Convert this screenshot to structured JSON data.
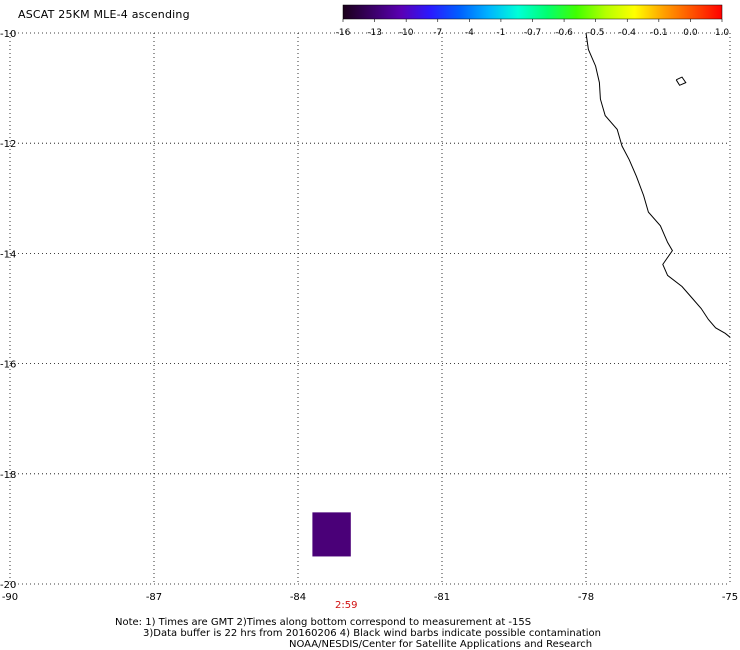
{
  "title": "ASCAT 25KM MLE-4 ascending",
  "colorbar": {
    "labels": [
      "-16",
      "-13",
      "-10",
      "-7",
      "-4",
      "-1",
      "-0.7",
      "-0.6",
      "-0.5",
      "-0.4",
      "-0.1",
      "0.0",
      "1.0"
    ],
    "gradient": [
      "#1a001a",
      "#3a0066",
      "#5a00b4",
      "#2a1aff",
      "#0060ff",
      "#00b4ff",
      "#00ffd8",
      "#00ff70",
      "#40ff00",
      "#b4ff00",
      "#ffff00",
      "#ffa000",
      "#ff5000",
      "#ff0000"
    ]
  },
  "map": {
    "lon_range": [
      -90,
      -75
    ],
    "lat_range": [
      -20,
      -10
    ],
    "lon_ticks": [
      {
        "value": -90,
        "label": "-90"
      },
      {
        "value": -87,
        "label": "-87"
      },
      {
        "value": -84,
        "label": "-84"
      },
      {
        "value": -81,
        "label": "-81"
      },
      {
        "value": -78,
        "label": "-78"
      },
      {
        "value": -75,
        "label": "-75"
      }
    ],
    "lat_ticks": [
      {
        "value": -10,
        "label": "-10"
      },
      {
        "value": -12,
        "label": "-12"
      },
      {
        "value": -14,
        "label": "-14"
      },
      {
        "value": -16,
        "label": "-16"
      },
      {
        "value": -18,
        "label": "-18"
      },
      {
        "value": -20,
        "label": "-20"
      }
    ],
    "grid": "dotted",
    "data_patch": {
      "lon_min": -83.7,
      "lon_max": -82.9,
      "lat_min": -19.5,
      "lat_max": -18.7,
      "color": "#4a0078"
    },
    "coastline": [
      [
        -78.0,
        -10.0
      ],
      [
        -77.95,
        -10.3
      ],
      [
        -77.8,
        -10.6
      ],
      [
        -77.72,
        -10.9
      ],
      [
        -77.7,
        -11.2
      ],
      [
        -77.6,
        -11.5
      ],
      [
        -77.35,
        -11.75
      ],
      [
        -77.25,
        -12.05
      ],
      [
        -77.1,
        -12.3
      ],
      [
        -76.95,
        -12.6
      ],
      [
        -76.8,
        -12.95
      ],
      [
        -76.7,
        -13.25
      ],
      [
        -76.45,
        -13.5
      ],
      [
        -76.3,
        -13.8
      ],
      [
        -76.2,
        -13.95
      ],
      [
        -76.4,
        -14.2
      ],
      [
        -76.3,
        -14.4
      ],
      [
        -76.0,
        -14.6
      ],
      [
        -75.8,
        -14.8
      ],
      [
        -75.6,
        -15.0
      ],
      [
        -75.45,
        -15.2
      ],
      [
        -75.3,
        -15.35
      ],
      [
        -75.1,
        -15.45
      ],
      [
        -75.0,
        -15.52
      ]
    ],
    "lake": [
      [
        -76.12,
        -10.85
      ],
      [
        -76.0,
        -10.8
      ],
      [
        -75.92,
        -10.9
      ],
      [
        -76.05,
        -10.95
      ],
      [
        -76.12,
        -10.85
      ]
    ],
    "time_label": "2:59",
    "time_label_lon": -83.0,
    "time_label_color": "#d01010"
  },
  "notes": [
    "Note: 1) Times are GMT 2)Times along bottom correspond to measurement at -15S",
    "3)Data buffer is 22 hrs from 20160206 4) Black wind barbs indicate possible contamination",
    "NOAA/NESDIS/Center for Satellite Applications and Research"
  ]
}
